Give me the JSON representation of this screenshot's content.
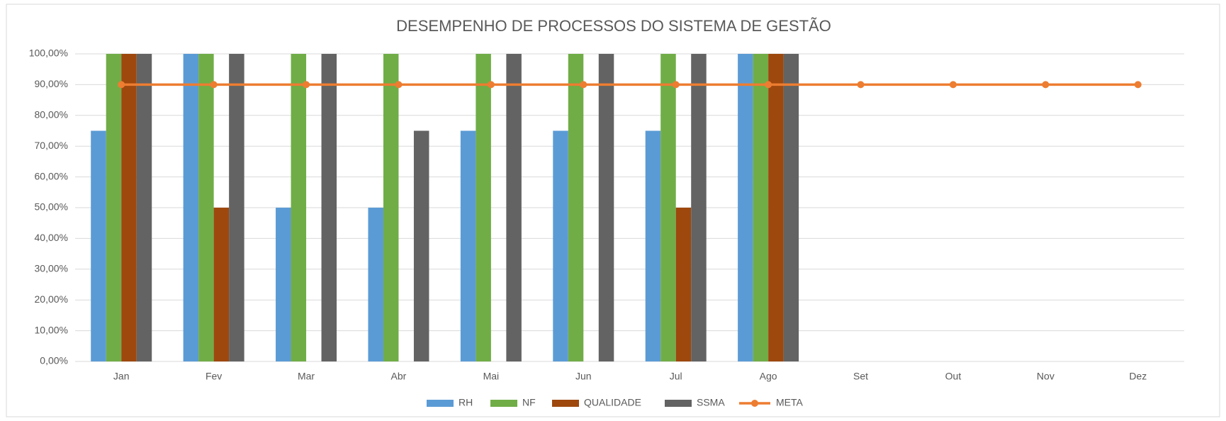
{
  "chart_data": {
    "type": "bar",
    "title": "DESEMPENHO DE PROCESSOS DO SISTEMA DE GESTÃO",
    "categories": [
      "Jan",
      "Fev",
      "Mar",
      "Abr",
      "Mai",
      "Jun",
      "Jul",
      "Ago",
      "Set",
      "Out",
      "Nov",
      "Dez"
    ],
    "series": [
      {
        "name": "RH",
        "color": "#5b9bd5",
        "type": "bar",
        "values": [
          75,
          100,
          50,
          50,
          75,
          75,
          75,
          100,
          null,
          null,
          null,
          null
        ]
      },
      {
        "name": "NF",
        "color": "#70ad47",
        "type": "bar",
        "values": [
          100,
          100,
          100,
          100,
          100,
          100,
          100,
          100,
          null,
          null,
          null,
          null
        ]
      },
      {
        "name": "QUALIDADE",
        "color": "#9e480e",
        "type": "bar",
        "values": [
          100,
          50,
          null,
          null,
          null,
          null,
          50,
          100,
          null,
          null,
          null,
          null
        ]
      },
      {
        "name": "SSMA",
        "color": "#636363",
        "type": "bar",
        "values": [
          100,
          100,
          100,
          75,
          100,
          100,
          100,
          100,
          null,
          null,
          null,
          null
        ]
      },
      {
        "name": "META",
        "color": "#ed7d31",
        "type": "line",
        "values": [
          90,
          90,
          90,
          90,
          90,
          90,
          90,
          90,
          90,
          90,
          90,
          90
        ]
      }
    ],
    "ylim": [
      0,
      100
    ],
    "yticks": [
      {
        "value": 0,
        "label": "0,00%"
      },
      {
        "value": 10,
        "label": "10,00%"
      },
      {
        "value": 20,
        "label": "20,00%"
      },
      {
        "value": 30,
        "label": "30,00%"
      },
      {
        "value": 40,
        "label": "40,00%"
      },
      {
        "value": 50,
        "label": "50,00%"
      },
      {
        "value": 60,
        "label": "60,00%"
      },
      {
        "value": 70,
        "label": "70,00%"
      },
      {
        "value": 80,
        "label": "80,00%"
      },
      {
        "value": 90,
        "label": "90,00%"
      },
      {
        "value": 100,
        "label": "100,00%"
      }
    ],
    "grid": true,
    "legend": "bottom"
  }
}
